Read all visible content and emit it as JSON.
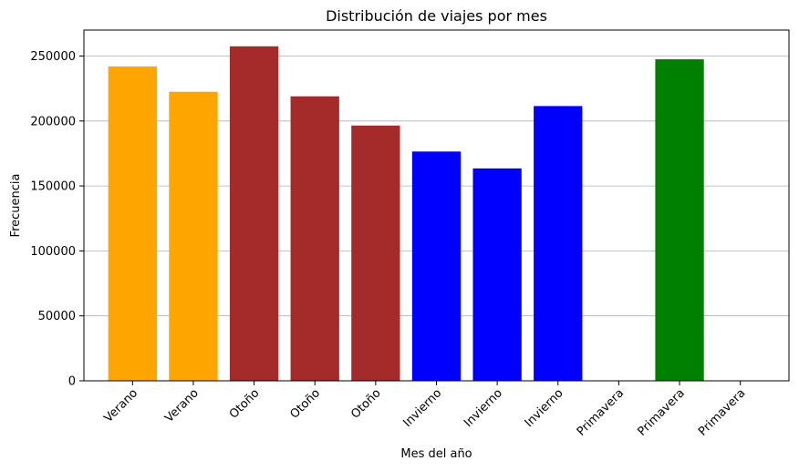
{
  "chart_data": {
    "type": "bar",
    "title": "Distribución de viajes por mes",
    "xlabel": "Mes del año",
    "ylabel": "Frecuencia",
    "categories": [
      "Verano",
      "Verano",
      "Otoño",
      "Otoño",
      "Otoño",
      "Invierno",
      "Invierno",
      "Invierno",
      "Primavera",
      "Primavera",
      "Primavera"
    ],
    "values": [
      242000,
      222500,
      257500,
      219000,
      196500,
      176500,
      163500,
      211500,
      0,
      247500,
      0
    ],
    "colors": [
      "#ffa500",
      "#ffa500",
      "#a52a2a",
      "#a52a2a",
      "#a52a2a",
      "#0000ff",
      "#0000ff",
      "#0000ff",
      "#008000",
      "#008000",
      "#008000"
    ],
    "ylim": [
      0,
      270000
    ],
    "yticks": [
      0,
      50000,
      100000,
      150000,
      200000,
      250000
    ],
    "ytick_labels": [
      "0",
      "50000",
      "100000",
      "150000",
      "200000",
      "250000"
    ],
    "grid": "horizontal",
    "legend": "none"
  }
}
